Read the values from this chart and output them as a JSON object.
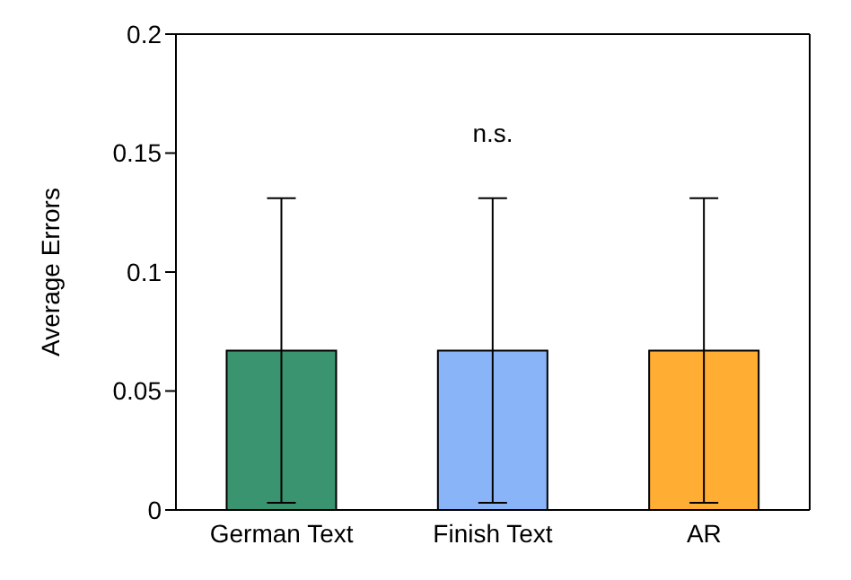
{
  "chart_data": {
    "type": "bar",
    "ylabel": "Average Errors",
    "categories": [
      "German Text",
      "Finish Text",
      "AR"
    ],
    "values": [
      0.067,
      0.067,
      0.067
    ],
    "colors": [
      "#3a9470",
      "#8ab4f8",
      "#ffad33"
    ],
    "errors": [
      0.064,
      0.064,
      0.064
    ],
    "ylim": [
      0,
      0.2
    ],
    "yticks": [
      0,
      0.05,
      0.1,
      0.15,
      0.2
    ],
    "annotations": [
      "n.s."
    ]
  }
}
